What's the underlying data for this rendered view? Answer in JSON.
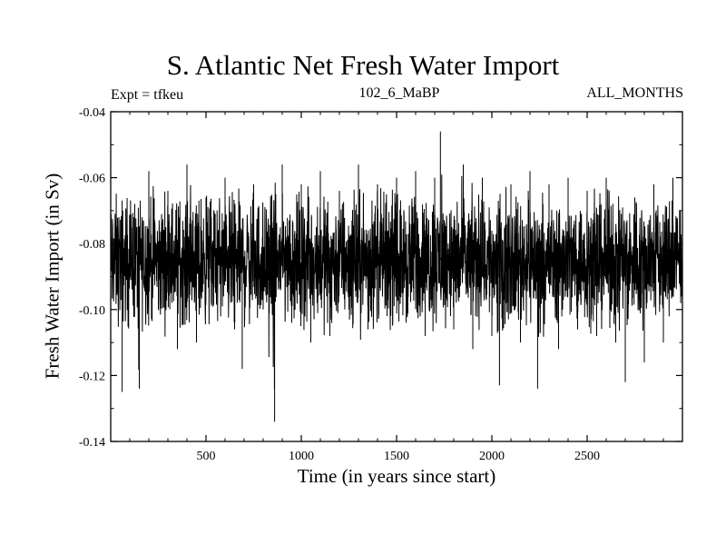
{
  "chart_data": {
    "type": "line",
    "title": "S. Atlantic Net Fresh Water Import",
    "header_left": "Expt = tfkeu",
    "header_center": "102_6_MaBP",
    "header_right": "ALL_MONTHS",
    "xlabel": "Time (in years since start)",
    "ylabel": "Fresh Water Import (in Sv)",
    "xlim": [
      0,
      3000
    ],
    "ylim": [
      -0.14,
      -0.04
    ],
    "x_ticks": [
      500,
      1000,
      1500,
      2000,
      2500
    ],
    "x_tick_labels": [
      "500",
      "1000",
      "1500",
      "2000",
      "2500"
    ],
    "y_ticks": [
      -0.14,
      -0.12,
      -0.1,
      -0.08,
      -0.06,
      -0.04
    ],
    "y_tick_labels": [
      "-0.14",
      "-0.12",
      "-0.10",
      "-0.08",
      "-0.06",
      "-0.04"
    ],
    "line_color": "#000000",
    "grid": false,
    "series": [
      {
        "x": [
          0,
          60,
          120,
          150,
          200,
          250,
          300,
          350,
          400,
          450,
          500,
          550,
          600,
          650,
          690,
          750,
          800,
          860,
          900,
          950,
          1000,
          1050,
          1100,
          1150,
          1200,
          1250,
          1300,
          1350,
          1400,
          1450,
          1500,
          1550,
          1600,
          1650,
          1700,
          1730,
          1800,
          1850,
          1900,
          1950,
          2000,
          2040,
          2100,
          2150,
          2200,
          2240,
          2300,
          2350,
          2400,
          2450,
          2500,
          2550,
          2600,
          2650,
          2700,
          2750,
          2800,
          2850,
          2900,
          2950,
          3000
        ],
        "y": [
          -0.085,
          -0.125,
          -0.072,
          -0.124,
          -0.058,
          -0.1,
          -0.064,
          -0.112,
          -0.056,
          -0.11,
          -0.066,
          -0.094,
          -0.06,
          -0.106,
          -0.118,
          -0.062,
          -0.1,
          -0.134,
          -0.056,
          -0.104,
          -0.062,
          -0.11,
          -0.058,
          -0.108,
          -0.064,
          -0.1,
          -0.056,
          -0.106,
          -0.062,
          -0.102,
          -0.06,
          -0.104,
          -0.058,
          -0.108,
          -0.06,
          -0.046,
          -0.106,
          -0.056,
          -0.112,
          -0.06,
          -0.108,
          -0.123,
          -0.062,
          -0.11,
          -0.058,
          -0.124,
          -0.062,
          -0.112,
          -0.06,
          -0.106,
          -0.064,
          -0.108,
          -0.06,
          -0.11,
          -0.122,
          -0.066,
          -0.116,
          -0.062,
          -0.11,
          -0.06,
          -0.08
        ]
      }
    ]
  }
}
